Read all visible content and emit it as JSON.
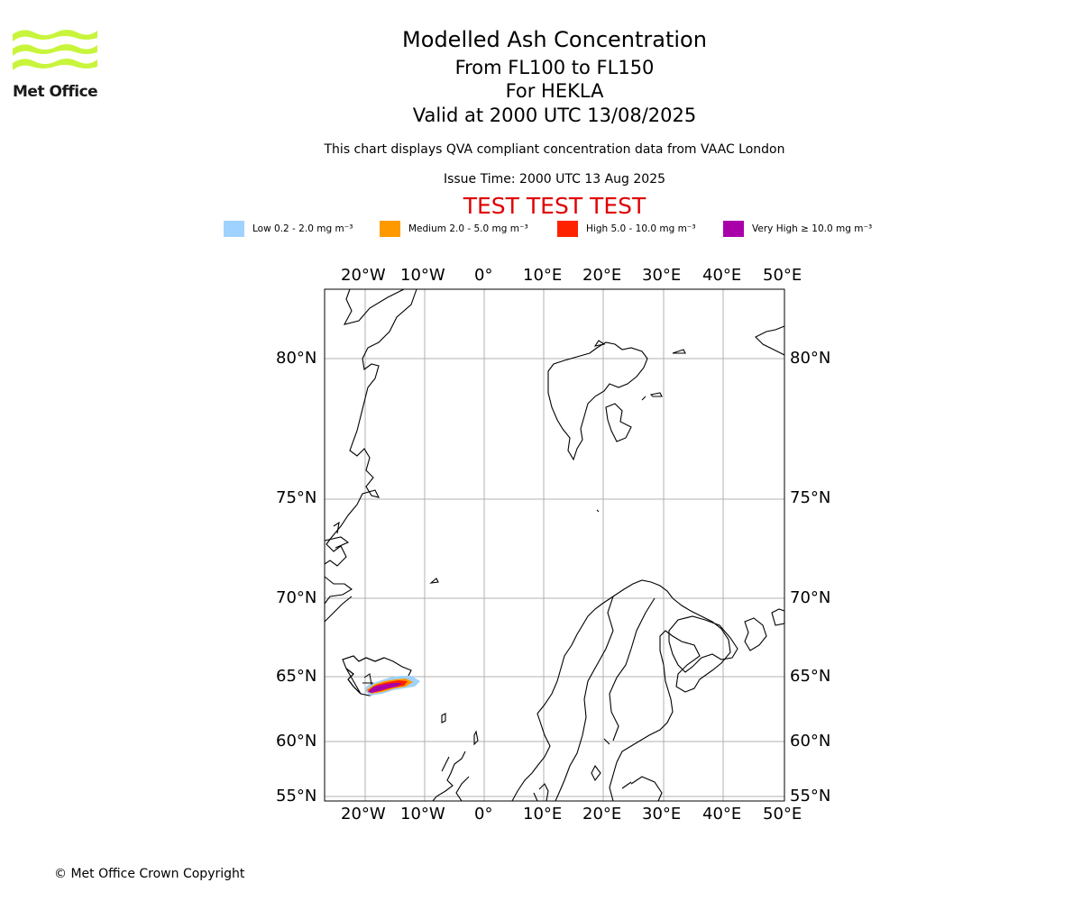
{
  "header": {
    "logo_text": "Met Office",
    "title": "Modelled Ash Concentration",
    "level_range": "From FL100 to FL150",
    "volcano": "For HEKLA",
    "valid_time": "Valid at 2000 UTC 13/08/2025",
    "description": "This chart displays QVA compliant concentration data from VAAC London",
    "issue_time": "Issue Time: 2000 UTC 13 Aug 2025",
    "test_banner": "TEST TEST TEST"
  },
  "legend": [
    {
      "label": "Low 0.2 - 2.0 mg m⁻³",
      "color": "#a0d2ff"
    },
    {
      "label": "Medium 2.0 - 5.0 mg m⁻³",
      "color": "#ff9900"
    },
    {
      "label": "High 5.0 - 10.0 mg m⁻³",
      "color": "#ff2200"
    },
    {
      "label": "Very High ≥ 10.0 mg m⁻³",
      "color": "#aa00aa"
    }
  ],
  "map": {
    "lon_ticks": [
      "20°W",
      "10°W",
      "0°",
      "10°E",
      "20°E",
      "30°E",
      "40°E",
      "50°E"
    ],
    "lat_ticks": [
      "80°N",
      "75°N",
      "70°N",
      "65°N",
      "60°N",
      "55°N"
    ]
  },
  "footer": {
    "copyright": "© Met Office Crown Copyright"
  }
}
